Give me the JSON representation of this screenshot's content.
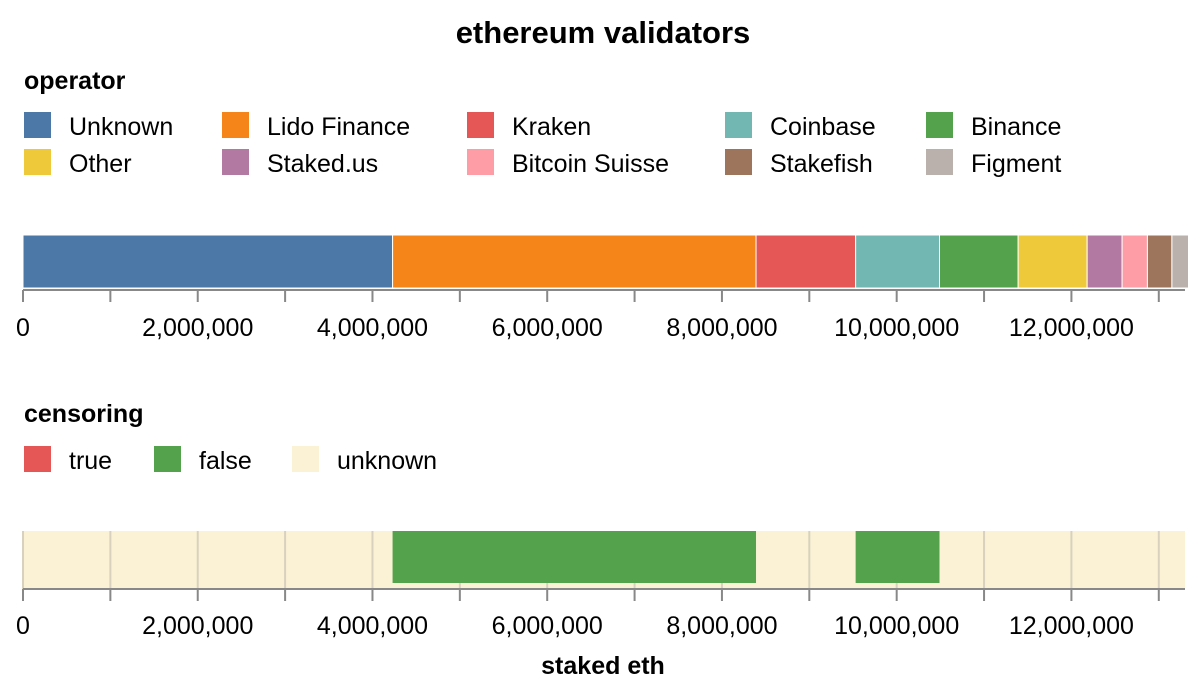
{
  "chart_data": [
    {
      "type": "bar",
      "orientation": "horizontal-stacked",
      "title": "ethereum validators",
      "legend_title": "operator",
      "legend_placement": "top",
      "grid": false,
      "xlim": [
        0,
        13300000
      ],
      "xticks": [
        0,
        2000000,
        4000000,
        6000000,
        8000000,
        10000000,
        12000000
      ],
      "xtick_labels": [
        "0",
        "2,000,000",
        "4,000,000",
        "6,000,000",
        "8,000,000",
        "10,000,000",
        "12,000,000"
      ],
      "xlabel": "",
      "series": [
        {
          "name": "Unknown",
          "value": 4230000,
          "color": "#4c78a8"
        },
        {
          "name": "Lido Finance",
          "value": 4160000,
          "color": "#f58518"
        },
        {
          "name": "Kraken",
          "value": 1140000,
          "color": "#e45756"
        },
        {
          "name": "Coinbase",
          "value": 960000,
          "color": "#72b7b2"
        },
        {
          "name": "Binance",
          "value": 900000,
          "color": "#54a24b"
        },
        {
          "name": "Other",
          "value": 790000,
          "color": "#eeca3b"
        },
        {
          "name": "Staked.us",
          "value": 400000,
          "color": "#b279a2"
        },
        {
          "name": "Bitcoin Suisse",
          "value": 290000,
          "color": "#ff9da6"
        },
        {
          "name": "Stakefish",
          "value": 280000,
          "color": "#9d755d"
        },
        {
          "name": "Figment",
          "value": 190000,
          "color": "#bab0ac"
        }
      ]
    },
    {
      "type": "bar",
      "orientation": "horizontal-stacked",
      "legend_title": "censoring",
      "legend_placement": "top",
      "grid": true,
      "xlim": [
        0,
        13300000
      ],
      "xticks": [
        0,
        2000000,
        4000000,
        6000000,
        8000000,
        10000000,
        12000000
      ],
      "xtick_labels": [
        "0",
        "2,000,000",
        "4,000,000",
        "6,000,000",
        "8,000,000",
        "10,000,000",
        "12,000,000"
      ],
      "xlabel": "staked eth",
      "legend": [
        {
          "name": "true",
          "color": "#e45756"
        },
        {
          "name": "false",
          "color": "#54a24b"
        },
        {
          "name": "unknown",
          "color": "#fbf2d6"
        }
      ],
      "segments": [
        {
          "category": "unknown",
          "value": 4230000,
          "color": "#fbf2d6"
        },
        {
          "category": "false",
          "value": 4160000,
          "color": "#54a24b"
        },
        {
          "category": "unknown",
          "value": 1140000,
          "color": "#fbf2d6"
        },
        {
          "category": "false",
          "value": 960000,
          "color": "#54a24b"
        },
        {
          "category": "unknown",
          "value": 2850000,
          "color": "#fbf2d6"
        }
      ]
    }
  ]
}
